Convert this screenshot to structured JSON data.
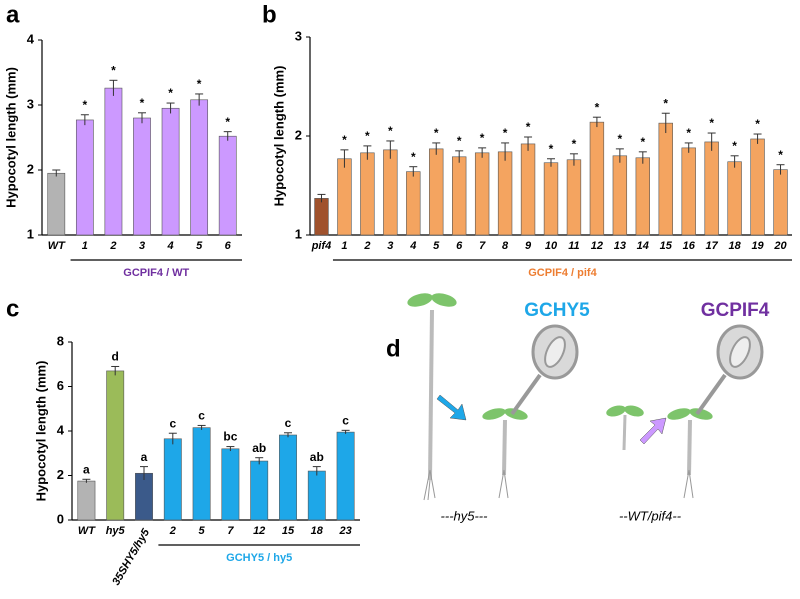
{
  "chart_data": [
    {
      "type": "bar",
      "panel_label": "a",
      "ylabel": "Hypocotyl length (mm)",
      "categories": [
        "WT",
        "1",
        "2",
        "3",
        "4",
        "5",
        "6"
      ],
      "values": [
        1.95,
        2.77,
        3.26,
        2.8,
        2.95,
        3.08,
        2.52
      ],
      "errors": [
        0.05,
        0.08,
        0.12,
        0.08,
        0.08,
        0.09,
        0.07
      ],
      "value_labels": [
        null,
        "*",
        "*",
        "*",
        "*",
        "*",
        "*"
      ],
      "colors": [
        "#b3b3b3",
        "#cc99ff",
        "#cc99ff",
        "#cc99ff",
        "#cc99ff",
        "#cc99ff",
        "#cc99ff"
      ],
      "group_label": "GCPIF4 / WT",
      "group_color": "#7030a0",
      "ylim": [
        1,
        4
      ],
      "yticks": [
        1,
        2,
        3,
        4
      ]
    },
    {
      "type": "bar",
      "panel_label": "b",
      "ylabel": "Hypocotyl length (mm)",
      "categories": [
        "pif4",
        "1",
        "2",
        "3",
        "4",
        "5",
        "6",
        "7",
        "8",
        "9",
        "10",
        "11",
        "12",
        "13",
        "14",
        "15",
        "16",
        "17",
        "18",
        "19",
        "20"
      ],
      "values": [
        1.37,
        1.77,
        1.83,
        1.86,
        1.64,
        1.87,
        1.79,
        1.83,
        1.84,
        1.92,
        1.73,
        1.76,
        2.14,
        1.8,
        1.78,
        2.13,
        1.88,
        1.94,
        1.74,
        1.97,
        1.66
      ],
      "errors": [
        0.04,
        0.09,
        0.07,
        0.09,
        0.05,
        0.06,
        0.06,
        0.05,
        0.09,
        0.07,
        0.04,
        0.06,
        0.05,
        0.07,
        0.06,
        0.1,
        0.05,
        0.09,
        0.06,
        0.05,
        0.05
      ],
      "value_labels": [
        null,
        "*",
        "*",
        "*",
        "*",
        "*",
        "*",
        "*",
        "*",
        "*",
        "*",
        "*",
        "*",
        "*",
        "*",
        "*",
        "*",
        "*",
        "*",
        "*",
        "*"
      ],
      "colors": [
        "#a0522d",
        "#f4a460",
        "#f4a460",
        "#f4a460",
        "#f4a460",
        "#f4a460",
        "#f4a460",
        "#f4a460",
        "#f4a460",
        "#f4a460",
        "#f4a460",
        "#f4a460",
        "#f4a460",
        "#f4a460",
        "#f4a460",
        "#f4a460",
        "#f4a460",
        "#f4a460",
        "#f4a460",
        "#f4a460",
        "#f4a460"
      ],
      "group_label": "GCPIF4 / pif4",
      "group_color": "#ed7d31",
      "ylim": [
        1,
        3
      ],
      "yticks": [
        1,
        2,
        3
      ]
    },
    {
      "type": "bar",
      "panel_label": "c",
      "ylabel": "Hypocotyl length (mm)",
      "categories": [
        "WT",
        "hy5",
        "35SHY5/hy5",
        "2",
        "5",
        "7",
        "12",
        "15",
        "18",
        "23"
      ],
      "values": [
        1.75,
        6.7,
        2.1,
        3.65,
        4.15,
        3.2,
        2.65,
        3.82,
        2.2,
        3.95
      ],
      "errors": [
        0.08,
        0.2,
        0.3,
        0.25,
        0.1,
        0.1,
        0.15,
        0.1,
        0.2,
        0.08
      ],
      "value_labels": [
        "a",
        "d",
        "a",
        "c",
        "c",
        "bc",
        "ab",
        "c",
        "ab",
        "c"
      ],
      "colors": [
        "#b3b3b3",
        "#9bbb59",
        "#3b5a8a",
        "#1ea7e8",
        "#1ea7e8",
        "#1ea7e8",
        "#1ea7e8",
        "#1ea7e8",
        "#1ea7e8",
        "#1ea7e8"
      ],
      "group_label": "GCHY5 / hy5",
      "group_color": "#1ea7e8",
      "ylim": [
        0,
        8
      ],
      "yticks": [
        0,
        2,
        4,
        6,
        8
      ]
    }
  ],
  "diagram": {
    "panel_label": "d",
    "left_title": "GCHY5",
    "right_title": "GCPIF4",
    "left_caption": "---hy5---",
    "right_caption": "--WT/pif4--"
  }
}
